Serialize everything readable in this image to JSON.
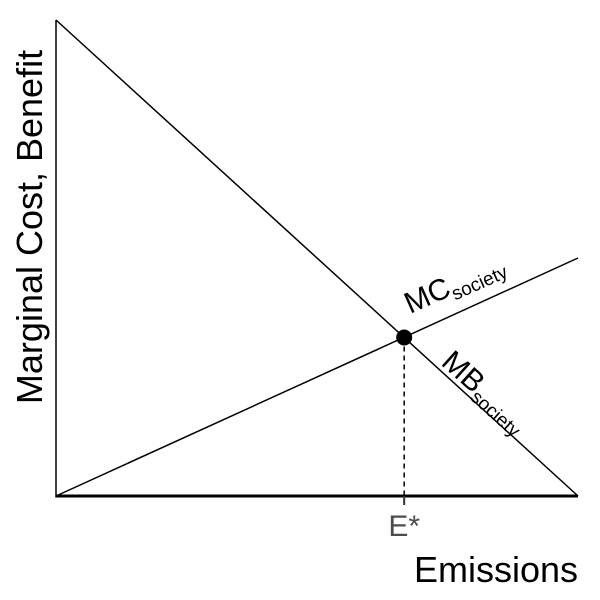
{
  "chart_data": {
    "type": "line",
    "title": "",
    "xlabel": "Emissions",
    "ylabel": "Marginal Cost, Benefit",
    "xlim": [
      0,
      1
    ],
    "ylim": [
      0,
      1
    ],
    "x_ticks": [
      {
        "value": 0.667,
        "label": "E*"
      }
    ],
    "grid": false,
    "legend": "none",
    "series": [
      {
        "id": "mb",
        "label_main": "MB",
        "label_sub": "society",
        "x": [
          0,
          1
        ],
        "y": [
          1,
          0
        ],
        "color": "#000000"
      },
      {
        "id": "mc",
        "label_main": "MC",
        "label_sub": "society",
        "x": [
          0,
          1
        ],
        "y": [
          0,
          0.5
        ],
        "color": "#000000"
      }
    ],
    "equilibrium": {
      "x": 0.667,
      "y": 0.333
    },
    "colors": {
      "line": "#000000",
      "tick_label": "#4d4d4d",
      "background": "#ffffff"
    }
  }
}
